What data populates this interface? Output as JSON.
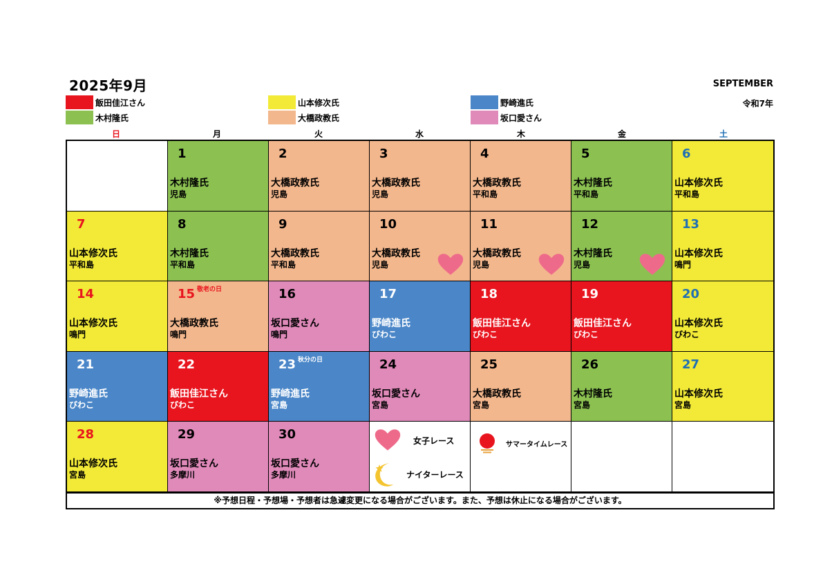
{
  "header": {
    "title": "2025年9月",
    "month_en": "SEPTEMBER",
    "era": "令和7年"
  },
  "legend": [
    {
      "name": "飯田佳江さん",
      "color": "#E8141E"
    },
    {
      "name": "木村隆氏",
      "color": "#8CC152"
    },
    {
      "name": "山本修次氏",
      "color": "#F2EA37"
    },
    {
      "name": "大橋政教氏",
      "color": "#F3B78D"
    },
    {
      "name": "野崎進氏",
      "color": "#4A86C8"
    },
    {
      "name": "坂口愛さん",
      "color": "#E08ABA"
    }
  ],
  "weekdays": [
    {
      "label": "日",
      "color": "#E8141E"
    },
    {
      "label": "月",
      "color": "#000000"
    },
    {
      "label": "火",
      "color": "#000000"
    },
    {
      "label": "水",
      "color": "#000000"
    },
    {
      "label": "木",
      "color": "#000000"
    },
    {
      "label": "金",
      "color": "#000000"
    },
    {
      "label": "土",
      "color": "#1F6FB5"
    }
  ],
  "days": [
    {
      "day": "",
      "person": "",
      "venue": "",
      "bg": "#FFFFFF",
      "num_color": "#000000",
      "text_color": "#000000"
    },
    {
      "day": "1",
      "person": "木村隆氏",
      "venue": "児島",
      "bg": "#8CC152",
      "num_color": "#000000",
      "text_color": "#000000"
    },
    {
      "day": "2",
      "person": "大橋政教氏",
      "venue": "児島",
      "bg": "#F3B78D",
      "num_color": "#000000",
      "text_color": "#000000"
    },
    {
      "day": "3",
      "person": "大橋政教氏",
      "venue": "児島",
      "bg": "#F3B78D",
      "num_color": "#000000",
      "text_color": "#000000"
    },
    {
      "day": "4",
      "person": "大橋政教氏",
      "venue": "平和島",
      "bg": "#F3B78D",
      "num_color": "#000000",
      "text_color": "#000000"
    },
    {
      "day": "5",
      "person": "木村隆氏",
      "venue": "平和島",
      "bg": "#8CC152",
      "num_color": "#000000",
      "text_color": "#000000"
    },
    {
      "day": "6",
      "person": "山本修次氏",
      "venue": "平和島",
      "bg": "#F2EA37",
      "num_color": "#1F6FB5",
      "text_color": "#000000"
    },
    {
      "day": "7",
      "person": "山本修次氏",
      "venue": "平和島",
      "bg": "#F2EA37",
      "num_color": "#E8141E",
      "text_color": "#000000"
    },
    {
      "day": "8",
      "person": "木村隆氏",
      "venue": "平和島",
      "bg": "#8CC152",
      "num_color": "#000000",
      "text_color": "#000000"
    },
    {
      "day": "9",
      "person": "大橋政教氏",
      "venue": "平和島",
      "bg": "#F3B78D",
      "num_color": "#000000",
      "text_color": "#000000"
    },
    {
      "day": "10",
      "person": "大橋政教氏",
      "venue": "児島",
      "bg": "#F3B78D",
      "num_color": "#000000",
      "text_color": "#000000",
      "icon": "heart"
    },
    {
      "day": "11",
      "person": "大橋政教氏",
      "venue": "児島",
      "bg": "#F3B78D",
      "num_color": "#000000",
      "text_color": "#000000",
      "icon": "heart"
    },
    {
      "day": "12",
      "person": "木村隆氏",
      "venue": "児島",
      "bg": "#8CC152",
      "num_color": "#000000",
      "text_color": "#000000",
      "icon": "heart"
    },
    {
      "day": "13",
      "person": "山本修次氏",
      "venue": "鳴門",
      "bg": "#F2EA37",
      "num_color": "#1F6FB5",
      "text_color": "#000000"
    },
    {
      "day": "14",
      "person": "山本修次氏",
      "venue": "鳴門",
      "bg": "#F2EA37",
      "num_color": "#E8141E",
      "text_color": "#000000"
    },
    {
      "day": "15",
      "person": "大橋政教氏",
      "venue": "鳴門",
      "bg": "#F3B78D",
      "num_color": "#E8141E",
      "text_color": "#000000",
      "holiday": "敬老の日",
      "holiday_color": "#E8141E"
    },
    {
      "day": "16",
      "person": "坂口愛さん",
      "venue": "鳴門",
      "bg": "#E08ABA",
      "num_color": "#000000",
      "text_color": "#000000"
    },
    {
      "day": "17",
      "person": "野崎進氏",
      "venue": "びわこ",
      "bg": "#4A86C8",
      "num_color": "#FFFFFF",
      "text_color": "#FFFFFF"
    },
    {
      "day": "18",
      "person": "飯田佳江さん",
      "venue": "びわこ",
      "bg": "#E8141E",
      "num_color": "#FFFFFF",
      "text_color": "#FFFFFF"
    },
    {
      "day": "19",
      "person": "飯田佳江さん",
      "venue": "びわこ",
      "bg": "#E8141E",
      "num_color": "#FFFFFF",
      "text_color": "#FFFFFF"
    },
    {
      "day": "20",
      "person": "山本修次氏",
      "venue": "びわこ",
      "bg": "#F2EA37",
      "num_color": "#1F6FB5",
      "text_color": "#000000"
    },
    {
      "day": "21",
      "person": "野崎進氏",
      "venue": "びわこ",
      "bg": "#4A86C8",
      "num_color": "#FFFFFF",
      "text_color": "#FFFFFF"
    },
    {
      "day": "22",
      "person": "飯田佳江さん",
      "venue": "びわこ",
      "bg": "#E8141E",
      "num_color": "#FFFFFF",
      "text_color": "#FFFFFF"
    },
    {
      "day": "23",
      "person": "野崎進氏",
      "venue": "宮島",
      "bg": "#4A86C8",
      "num_color": "#FFFFFF",
      "text_color": "#FFFFFF",
      "holiday": "秋分の日",
      "holiday_color": "#FFFFFF"
    },
    {
      "day": "24",
      "person": "坂口愛さん",
      "venue": "宮島",
      "bg": "#E08ABA",
      "num_color": "#000000",
      "text_color": "#000000"
    },
    {
      "day": "25",
      "person": "大橋政教氏",
      "venue": "宮島",
      "bg": "#F3B78D",
      "num_color": "#000000",
      "text_color": "#000000"
    },
    {
      "day": "26",
      "person": "木村隆氏",
      "venue": "宮島",
      "bg": "#8CC152",
      "num_color": "#000000",
      "text_color": "#000000"
    },
    {
      "day": "27",
      "person": "山本修次氏",
      "venue": "宮島",
      "bg": "#F2EA37",
      "num_color": "#1F6FB5",
      "text_color": "#000000"
    },
    {
      "day": "28",
      "person": "山本修次氏",
      "venue": "宮島",
      "bg": "#F2EA37",
      "num_color": "#E8141E",
      "text_color": "#000000"
    },
    {
      "day": "29",
      "person": "坂口愛さん",
      "venue": "多摩川",
      "bg": "#E08ABA",
      "num_color": "#000000",
      "text_color": "#000000"
    },
    {
      "day": "30",
      "person": "坂口愛さん",
      "venue": "多摩川",
      "bg": "#E08ABA",
      "num_color": "#000000",
      "text_color": "#000000"
    }
  ],
  "icon_legend": {
    "women": {
      "icon": "heart-icon",
      "label": "女子レース",
      "color": "#EE6A8A"
    },
    "night": {
      "icon": "moon-star-icon",
      "label": "ナイターレース",
      "color": "#F4C430"
    },
    "summer": {
      "icon": "sun-icon",
      "label": "サマータイムレース",
      "color": "#E8141E"
    }
  },
  "footer": {
    "note": "※予想日程・予想場・予想者は急遽変更になる場合がございます。また、予想は休止になる場合がございます。"
  }
}
